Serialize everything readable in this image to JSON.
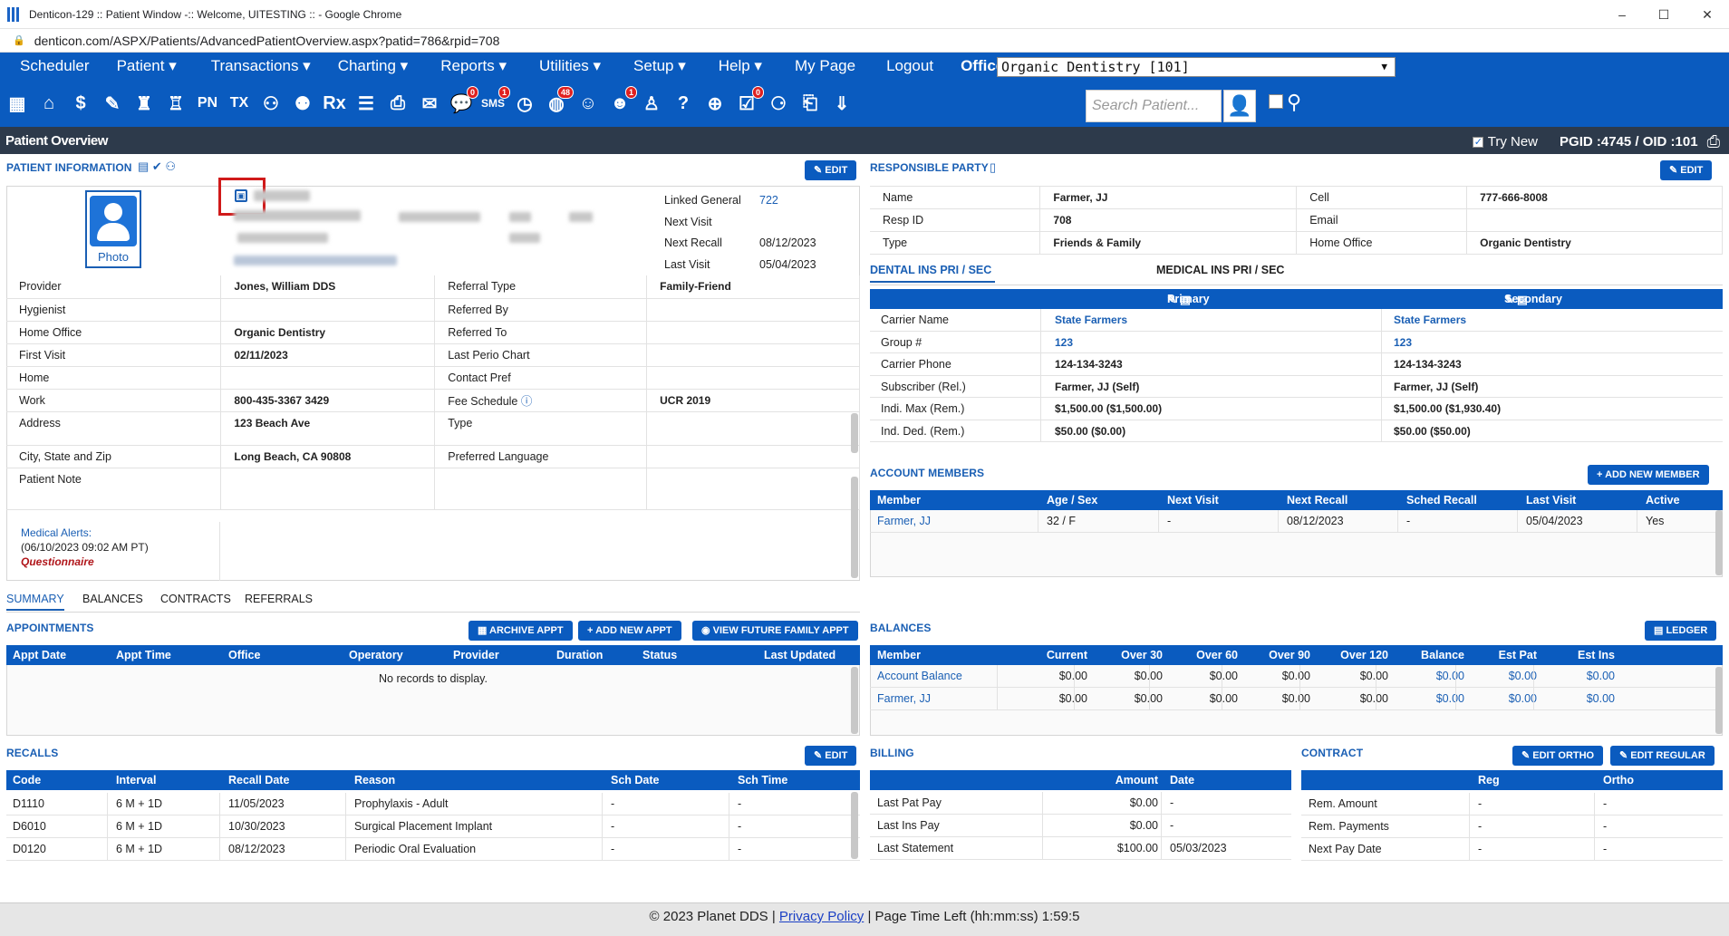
{
  "window": {
    "title": "Denticon-129 :: Patient Window -:: Welcome, UITESTING :: - Google Chrome",
    "url": "denticon.com/ASPX/Patients/AdvancedPatientOverview.aspx?patid=786&rpid=708"
  },
  "menu": {
    "items": [
      "Scheduler",
      "Patient ▾",
      "Transactions ▾",
      "Charting ▾",
      "Reports ▾",
      "Utilities ▾",
      "Setup ▾",
      "Help ▾",
      "My Page",
      "Logout",
      "Office"
    ],
    "office_value": "Organic Dentistry [101]"
  },
  "toolbar": {
    "search_placeholder": "Search Patient...",
    "badges": {
      "msg": "0",
      "sms": "1",
      "globe": "48",
      "tooth": "1",
      "form": "0"
    },
    "icon_text": {
      "pn": "PN",
      "tx": "TX",
      "rx": "Rx",
      "sms": "SMS"
    }
  },
  "page": {
    "title": "Patient Overview",
    "try_new": "Try New",
    "ids": "PGID :4745  /  OID :101"
  },
  "patient_info": {
    "title": "PATIENT INFORMATION",
    "edit": "EDIT",
    "photo_label": "Photo",
    "linked": [
      {
        "label": "Linked General",
        "value": "722"
      },
      {
        "label": "Next Visit",
        "value": ""
      },
      {
        "label": "Next Recall",
        "value": "08/12/2023"
      },
      {
        "label": "Last Visit",
        "value": "05/04/2023"
      }
    ],
    "rows": [
      {
        "l1": "Provider",
        "v1": "Jones, William DDS",
        "l2": "Referral Type",
        "v2": "Family-Friend"
      },
      {
        "l1": "Hygienist",
        "v1": "",
        "l2": "Referred By",
        "v2": ""
      },
      {
        "l1": "Home Office",
        "v1": "Organic Dentistry",
        "l2": "Referred To",
        "v2": ""
      },
      {
        "l1": "First Visit",
        "v1": "02/11/2023",
        "l2": "Last Perio Chart",
        "v2": ""
      },
      {
        "l1": "Home",
        "v1": "",
        "l2": "Contact Pref",
        "v2": ""
      },
      {
        "l1": "Work",
        "v1": "800-435-3367 3429",
        "l2": "Fee Schedule",
        "v2": "UCR 2019"
      },
      {
        "l1": "Address",
        "v1": "123 Beach Ave",
        "l2": "Type",
        "v2": ""
      },
      {
        "l1": "City, State and Zip",
        "v1": "Long Beach, CA 90808",
        "l2": "Preferred Language",
        "v2": ""
      },
      {
        "l1": "Patient Note",
        "v1": "",
        "l2": "",
        "v2": ""
      }
    ],
    "medical_alerts": "Medical Alerts:",
    "medical_alerts_date": "(06/10/2023 09:02 AM PT)",
    "questionnaire": "Questionnaire"
  },
  "responsible_party": {
    "title": "RESPONSIBLE PARTY",
    "edit": "EDIT",
    "rows": [
      {
        "l1": "Name",
        "v1": "Farmer, JJ",
        "l2": "Cell",
        "v2": "777-666-8008"
      },
      {
        "l1": "Resp ID",
        "v1": "708",
        "l2": "Email",
        "v2": ""
      },
      {
        "l1": "Type",
        "v1": "Friends & Family",
        "l2": "Home Office",
        "v2": "Organic Dentistry"
      }
    ]
  },
  "insurance": {
    "tabs": [
      "DENTAL INS PRI / SEC",
      "MEDICAL INS PRI / SEC"
    ],
    "primary": "Primary",
    "secondary": "Secondary",
    "rows": [
      {
        "label": "Carrier Name",
        "p": "State Farmers",
        "s": "State Farmers"
      },
      {
        "label": "Group #",
        "p": "123",
        "s": "123"
      },
      {
        "label": "Carrier Phone",
        "p": "124-134-3243",
        "s": "124-134-3243"
      },
      {
        "label": "Subscriber (Rel.)",
        "p": "Farmer, JJ (Self)",
        "s": "Farmer, JJ (Self)"
      },
      {
        "label": "Indi. Max (Rem.)",
        "p": "$1,500.00 ($1,500.00)",
        "s": "$1,500.00 ($1,930.40)"
      },
      {
        "label": "Ind. Ded. (Rem.)",
        "p": "$50.00 ($0.00)",
        "s": "$50.00 ($50.00)"
      }
    ]
  },
  "account_members": {
    "title": "ACCOUNT MEMBERS",
    "add": "ADD NEW MEMBER",
    "headers": [
      "Member",
      "Age / Sex",
      "Next Visit",
      "Next Recall",
      "Sched Recall",
      "Last Visit",
      "Active"
    ],
    "rows": [
      [
        "Farmer, JJ",
        "32 / F",
        "-",
        "08/12/2023",
        "-",
        "05/04/2023",
        "Yes"
      ]
    ]
  },
  "lower_tabs": [
    "SUMMARY",
    "BALANCES",
    "CONTRACTS",
    "REFERRALS"
  ],
  "appointments": {
    "title": "APPOINTMENTS",
    "buttons": [
      "ARCHIVE APPT",
      "ADD NEW APPT",
      "VIEW FUTURE FAMILY APPT"
    ],
    "headers": [
      "Appt Date",
      "Appt Time",
      "Office",
      "Operatory",
      "Provider",
      "Duration",
      "Status",
      "Last Updated"
    ],
    "empty": "No records to display."
  },
  "balances": {
    "title": "BALANCES",
    "ledger": "LEDGER",
    "headers": [
      "Member",
      "Current",
      "Over 30",
      "Over 60",
      "Over 90",
      "Over 120",
      "Balance",
      "Est Pat",
      "Est Ins"
    ],
    "rows": [
      [
        "Account Balance",
        "$0.00",
        "$0.00",
        "$0.00",
        "$0.00",
        "$0.00",
        "$0.00",
        "$0.00",
        "$0.00"
      ],
      [
        "Farmer, JJ",
        "$0.00",
        "$0.00",
        "$0.00",
        "$0.00",
        "$0.00",
        "$0.00",
        "$0.00",
        "$0.00"
      ]
    ]
  },
  "recalls": {
    "title": "RECALLS",
    "edit": "EDIT",
    "headers": [
      "Code",
      "Interval",
      "Recall Date",
      "Reason",
      "Sch Date",
      "Sch Time"
    ],
    "rows": [
      [
        "D1110",
        "6 M + 1D",
        "11/05/2023",
        "Prophylaxis - Adult",
        "-",
        "-"
      ],
      [
        "D6010",
        "6 M + 1D",
        "10/30/2023",
        "Surgical Placement Implant",
        "-",
        "-"
      ],
      [
        "D0120",
        "6 M + 1D",
        "08/12/2023",
        "Periodic Oral Evaluation",
        "-",
        "-"
      ]
    ]
  },
  "billing": {
    "title": "BILLING",
    "headers": [
      "",
      "Amount",
      "Date"
    ],
    "rows": [
      [
        "Last Pat Pay",
        "$0.00",
        "-"
      ],
      [
        "Last Ins Pay",
        "$0.00",
        "-"
      ],
      [
        "Last Statement",
        "$100.00",
        "05/03/2023"
      ]
    ]
  },
  "contract": {
    "title": "CONTRACT",
    "buttons": [
      "EDIT ORTHO",
      "EDIT REGULAR"
    ],
    "headers": [
      "",
      "Reg",
      "Ortho"
    ],
    "rows": [
      [
        "Rem. Amount",
        "-",
        "-"
      ],
      [
        "Rem. Payments",
        "-",
        "-"
      ],
      [
        "Next Pay Date",
        "-",
        "-"
      ]
    ]
  },
  "footer": {
    "copyright": "© 2023 Planet DDS |",
    "privacy": "Privacy Policy",
    "time_left": "| Page Time Left (hh:mm:ss) 1:59:5"
  }
}
